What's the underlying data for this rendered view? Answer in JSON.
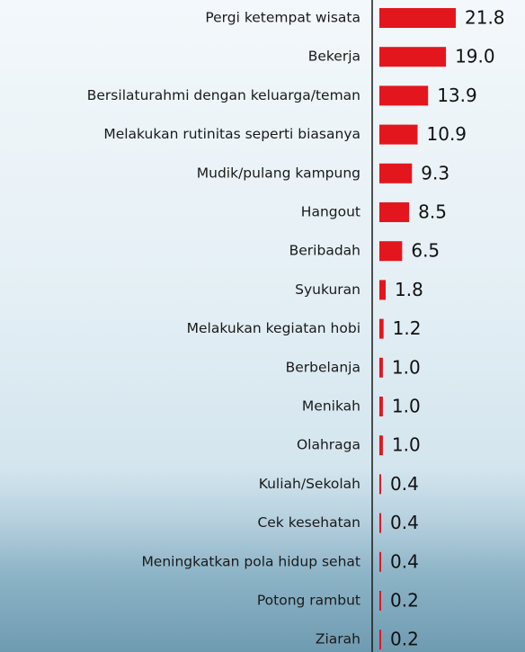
{
  "chart_data": {
    "type": "bar",
    "orientation": "horizontal",
    "color": "#e3161e",
    "categories": [
      "Pergi ketempat wisata",
      "Bekerja",
      "Bersilaturahmi dengan keluarga/teman",
      "Melakukan rutinitas seperti biasanya",
      "Mudik/pulang kampung",
      "Hangout",
      "Beribadah",
      "Syukuran",
      "Melakukan kegiatan hobi",
      "Berbelanja",
      "Menikah",
      "Olahraga",
      "Kuliah/Sekolah",
      "Cek kesehatan",
      "Meningkatkan pola hidup sehat",
      "Potong rambut",
      "Ziarah"
    ],
    "values": [
      21.8,
      19.0,
      13.9,
      10.9,
      9.3,
      8.5,
      6.5,
      1.8,
      1.2,
      1.0,
      1.0,
      1.0,
      0.4,
      0.4,
      0.4,
      0.2,
      0.2
    ],
    "value_labels": [
      "21.8",
      "19.0",
      "13.9",
      "10.9",
      "9.3",
      "8.5",
      "6.5",
      "1.8",
      "1.2",
      "1.0",
      "1.0",
      "1.0",
      "0.4",
      "0.4",
      "0.4",
      "0.2",
      "0.2"
    ]
  }
}
